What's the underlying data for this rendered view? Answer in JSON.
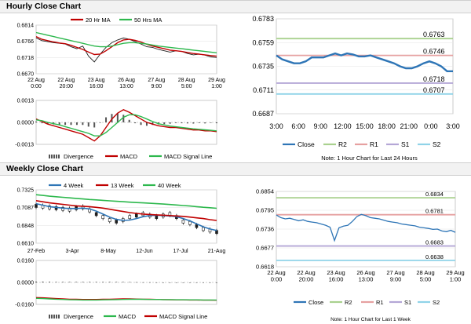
{
  "sections": {
    "hourly_title": "Hourly Close Chart",
    "weekly_title": "Weekly Close Chart"
  },
  "colors": {
    "price": "#1f1f1f",
    "ma_short": "#c00000",
    "ma_long": "#2db84d",
    "close": "#2e75b6",
    "r2": "#a9d18e",
    "r1": "#e6a0a0",
    "s1": "#b4a7d6",
    "s2": "#8fd3e8",
    "divergence": "#555555"
  },
  "chart_data": [
    {
      "id": "hourly_price",
      "type": "line",
      "legend": [
        "20 Hr MA",
        "50 Hrs MA"
      ],
      "x_ticks": [
        "22 Aug\n0:00",
        "22 Aug\n20:00",
        "23 Aug\n16:00",
        "26 Aug\n13:00",
        "27 Aug\n9:00",
        "28 Aug\n5:00",
        "29 Aug\n1:00"
      ],
      "y_ticks": [
        "0.6814",
        "0.6766",
        "0.6718",
        "0.6670"
      ],
      "ylim": [
        0.667,
        0.6814
      ],
      "series": [
        {
          "name": "Price",
          "values": [
            0.6776,
            0.6768,
            0.6765,
            0.6762,
            0.676,
            0.6758,
            0.675,
            0.6744,
            0.6752,
            0.6722,
            0.6705,
            0.6728,
            0.6748,
            0.6762,
            0.677,
            0.6776,
            0.6772,
            0.6765,
            0.6758,
            0.675,
            0.6748,
            0.6742,
            0.6738,
            0.6734,
            0.6738,
            0.6736,
            0.673,
            0.6726,
            0.6728,
            0.6725,
            0.672,
            0.6718
          ]
        },
        {
          "name": "20 Hr MA",
          "values": [
            0.678,
            0.6772,
            0.6768,
            0.6764,
            0.6761,
            0.6759,
            0.6754,
            0.6748,
            0.6742,
            0.6734,
            0.6727,
            0.6728,
            0.6738,
            0.675,
            0.6762,
            0.677,
            0.6772,
            0.6769,
            0.6764,
            0.6757,
            0.6752,
            0.6748,
            0.6744,
            0.674,
            0.6738,
            0.6736,
            0.6733,
            0.673,
            0.6728,
            0.6726,
            0.6724,
            0.6722
          ]
        },
        {
          "name": "50 Hrs MA",
          "values": [
            0.6792,
            0.6788,
            0.6784,
            0.678,
            0.6776,
            0.6772,
            0.6768,
            0.6764,
            0.676,
            0.6756,
            0.6752,
            0.675,
            0.675,
            0.6752,
            0.6756,
            0.676,
            0.6762,
            0.6762,
            0.676,
            0.6758,
            0.6755,
            0.6752,
            0.675,
            0.6748,
            0.6746,
            0.6744,
            0.6742,
            0.674,
            0.6738,
            0.6736,
            0.6734,
            0.6732
          ]
        }
      ]
    },
    {
      "id": "hourly_macd",
      "type": "line",
      "legend": [
        "Divergence",
        "MACD",
        "MACD Signal Line"
      ],
      "y_ticks": [
        "0.0013",
        "0.0000",
        "-0.0013"
      ],
      "ylim": [
        -0.0013,
        0.0013
      ],
      "series": [
        {
          "name": "MACD",
          "values": [
            0.0002,
            5e-05,
            -0.0001,
            -0.0002,
            -0.0003,
            -0.0004,
            -0.0005,
            -0.0006,
            -0.0007,
            -0.0009,
            -0.0011,
            -0.0008,
            -0.0003,
            0.0002,
            0.00055,
            0.00075,
            0.0006,
            0.0004,
            0.0002,
            0.0,
            -0.0001,
            -0.0002,
            -0.00025,
            -0.0003,
            -0.0003,
            -0.00035,
            -0.0004,
            -0.00045,
            -0.00045,
            -0.0005,
            -0.0005,
            -0.00055
          ]
        },
        {
          "name": "MACD Signal Line",
          "values": [
            0.00015,
            0.0001,
            0.0,
            -8e-05,
            -0.00015,
            -0.00025,
            -0.00035,
            -0.00045,
            -0.00055,
            -0.00065,
            -0.0008,
            -0.0008,
            -0.0006,
            -0.0003,
            0.0,
            0.0003,
            0.00045,
            0.00045,
            0.00035,
            0.0002,
            5e-05,
            -8e-05,
            -0.00015,
            -0.00022,
            -0.00026,
            -0.0003,
            -0.00034,
            -0.00038,
            -0.00041,
            -0.00044,
            -0.00047,
            -0.0005
          ]
        },
        {
          "name": "Divergence",
          "values": [
            5e-05,
            -5e-05,
            -0.0001,
            -0.00012,
            -0.00015,
            -0.00015,
            -0.00015,
            -0.00015,
            -0.00015,
            -0.00025,
            -0.0003,
            0.0,
            0.0003,
            0.0005,
            0.00055,
            0.00045,
            0.00015,
            -5e-05,
            -0.00015,
            -0.0002,
            -0.00015,
            -0.00012,
            -0.0001,
            -8e-05,
            -4e-05,
            -5e-05,
            -6e-05,
            -7e-05,
            -4e-05,
            -6e-05,
            -3e-05,
            -5e-05
          ]
        }
      ]
    },
    {
      "id": "hourly_levels",
      "type": "line",
      "x_ticks": [
        "3:00",
        "6:00",
        "9:00",
        "12:00",
        "15:00",
        "18:00",
        "21:00",
        "0:00",
        "3:00"
      ],
      "y_ticks": [
        "0.6783",
        "0.6759",
        "0.6735",
        "0.6711",
        "0.6687"
      ],
      "ylim": [
        0.6687,
        0.6783
      ],
      "levels": [
        {
          "name": "R2",
          "value": 0.6763,
          "label": "0.6763"
        },
        {
          "name": "R1",
          "value": 0.6746,
          "label": "0.6746"
        },
        {
          "name": "S1",
          "value": 0.6718,
          "label": "0.6718"
        },
        {
          "name": "S2",
          "value": 0.6707,
          "label": "0.6707"
        }
      ],
      "series": [
        {
          "name": "Close",
          "values": [
            0.6746,
            0.6742,
            0.674,
            0.6738,
            0.6738,
            0.674,
            0.6744,
            0.6744,
            0.6744,
            0.6746,
            0.6748,
            0.6746,
            0.6748,
            0.6747,
            0.6745,
            0.6745,
            0.6746,
            0.6744,
            0.6742,
            0.674,
            0.6738,
            0.6735,
            0.6733,
            0.6733,
            0.6735,
            0.6738,
            0.674,
            0.6738,
            0.6735,
            0.673,
            0.673
          ]
        }
      ],
      "legend": [
        "Close",
        "R2",
        "R1",
        "S1",
        "S2"
      ],
      "note": "Note: 1 Hour Chart for Last 24 Hours"
    },
    {
      "id": "weekly_price",
      "type": "line",
      "legend": [
        "4 Week",
        "13 Week",
        "40 Week"
      ],
      "x_ticks": [
        "27-Feb",
        "3-Apr",
        "8-May",
        "12-Jun",
        "17-Jul",
        "21-Aug"
      ],
      "y_ticks": [
        "0.7325",
        "0.7087",
        "0.6848",
        "0.6610"
      ],
      "ylim": [
        0.661,
        0.7325
      ],
      "series": [
        {
          "name": "Price",
          "values": [
            0.711,
            0.71,
            0.709,
            0.708,
            0.707,
            0.706,
            0.708,
            0.709,
            0.705,
            0.7,
            0.696,
            0.692,
            0.69,
            0.692,
            0.696,
            0.698,
            0.7,
            0.698,
            0.696,
            0.698,
            0.7,
            0.696,
            0.69,
            0.688,
            0.684,
            0.68,
            0.678,
            0.676
          ]
        },
        {
          "name": "4 Week",
          "values": [
            0.714,
            0.712,
            0.71,
            0.709,
            0.708,
            0.7075,
            0.7075,
            0.708,
            0.707,
            0.704,
            0.7,
            0.696,
            0.693,
            0.6915,
            0.692,
            0.694,
            0.6965,
            0.698,
            0.6985,
            0.698,
            0.6975,
            0.6965,
            0.694,
            0.691,
            0.687,
            0.683,
            0.68,
            0.678
          ]
        },
        {
          "name": "13 Week",
          "values": [
            0.718,
            0.7165,
            0.715,
            0.714,
            0.713,
            0.712,
            0.711,
            0.7105,
            0.71,
            0.709,
            0.708,
            0.7065,
            0.705,
            0.7035,
            0.702,
            0.701,
            0.7,
            0.6995,
            0.699,
            0.6985,
            0.698,
            0.6975,
            0.697,
            0.696,
            0.695,
            0.694,
            0.6925,
            0.6915
          ]
        },
        {
          "name": "40 Week",
          "values": [
            0.726,
            0.725,
            0.724,
            0.7232,
            0.7225,
            0.7218,
            0.721,
            0.7203,
            0.7196,
            0.719,
            0.7184,
            0.7178,
            0.7172,
            0.7166,
            0.716,
            0.7155,
            0.715,
            0.7145,
            0.714,
            0.7135,
            0.7128,
            0.7122,
            0.7115,
            0.7108,
            0.71,
            0.7092,
            0.7085,
            0.7078
          ]
        }
      ]
    },
    {
      "id": "weekly_macd",
      "type": "line",
      "legend": [
        "Divergence",
        "MACD",
        "MACD Signal Line"
      ],
      "y_ticks": [
        "0.0160",
        "0.0000",
        "-0.0160"
      ],
      "ylim": [
        -0.016,
        0.016
      ],
      "series": [
        {
          "name": "MACD",
          "values": [
            -0.011,
            -0.0112,
            -0.0115,
            -0.0118,
            -0.012,
            -0.0122,
            -0.0123,
            -0.0124,
            -0.0124,
            -0.0124,
            -0.0123,
            -0.0122,
            -0.0121,
            -0.012,
            -0.012,
            -0.0121,
            -0.0122,
            -0.0123,
            -0.0124,
            -0.0125,
            -0.0126,
            -0.0127,
            -0.0127,
            -0.0128,
            -0.0128,
            -0.0129,
            -0.0129,
            -0.013
          ]
        },
        {
          "name": "MACD Signal Line",
          "values": [
            -0.0116,
            -0.0118,
            -0.012,
            -0.0122,
            -0.0124,
            -0.0126,
            -0.0127,
            -0.0128,
            -0.0128,
            -0.0128,
            -0.0127,
            -0.0126,
            -0.0125,
            -0.0124,
            -0.0123,
            -0.0123,
            -0.0123,
            -0.0124,
            -0.0124,
            -0.0125,
            -0.0125,
            -0.0126,
            -0.0126,
            -0.0127,
            -0.0127,
            -0.0128,
            -0.0128,
            -0.0128
          ]
        },
        {
          "name": "Divergence",
          "values": [
            0.0006,
            0.0006,
            0.0005,
            0.0004,
            0.0004,
            0.0004,
            0.0004,
            0.0004,
            0.0004,
            0.0004,
            0.0004,
            0.0004,
            0.0004,
            0.0004,
            0.0003,
            0.0002,
            0.0001,
            0.0001,
            0.0,
            0.0,
            -0.0001,
            -0.0001,
            -0.0001,
            -0.0001,
            -0.0001,
            -0.0001,
            -0.0001,
            -0.0002
          ]
        }
      ]
    },
    {
      "id": "weekly_levels",
      "type": "line",
      "x_ticks": [
        "22 Aug\n0:00",
        "22 Aug\n20:00",
        "23 Aug\n16:00",
        "26 Aug\n13:00",
        "27 Aug\n9:00",
        "28 Aug\n5:00",
        "29 Aug\n1:00"
      ],
      "y_ticks": [
        "0.6854",
        "0.6795",
        "0.6736",
        "0.6677",
        "0.6618"
      ],
      "ylim": [
        0.6618,
        0.6854
      ],
      "levels": [
        {
          "name": "R2",
          "value": 0.6834,
          "label": "0.6834"
        },
        {
          "name": "R1",
          "value": 0.6781,
          "label": "0.6781"
        },
        {
          "name": "S1",
          "value": 0.6683,
          "label": "0.6683"
        },
        {
          "name": "S2",
          "value": 0.6638,
          "label": "0.6638"
        }
      ],
      "series": [
        {
          "name": "Close",
          "values": [
            0.678,
            0.6772,
            0.6768,
            0.677,
            0.6766,
            0.6762,
            0.6765,
            0.676,
            0.6758,
            0.6756,
            0.6752,
            0.6748,
            0.6742,
            0.67,
            0.674,
            0.6745,
            0.6748,
            0.676,
            0.6775,
            0.6782,
            0.6778,
            0.6772,
            0.677,
            0.6768,
            0.6764,
            0.676,
            0.6758,
            0.6756,
            0.6752,
            0.675,
            0.6748,
            0.6746,
            0.6742,
            0.674,
            0.6738,
            0.6735,
            0.6736,
            0.673,
            0.6728,
            0.6732,
            0.6726
          ]
        }
      ],
      "legend": [
        "Close",
        "R2",
        "R1",
        "S1",
        "S2"
      ],
      "note": "Note: 1 Hour Chart for Last 1 Week"
    }
  ]
}
